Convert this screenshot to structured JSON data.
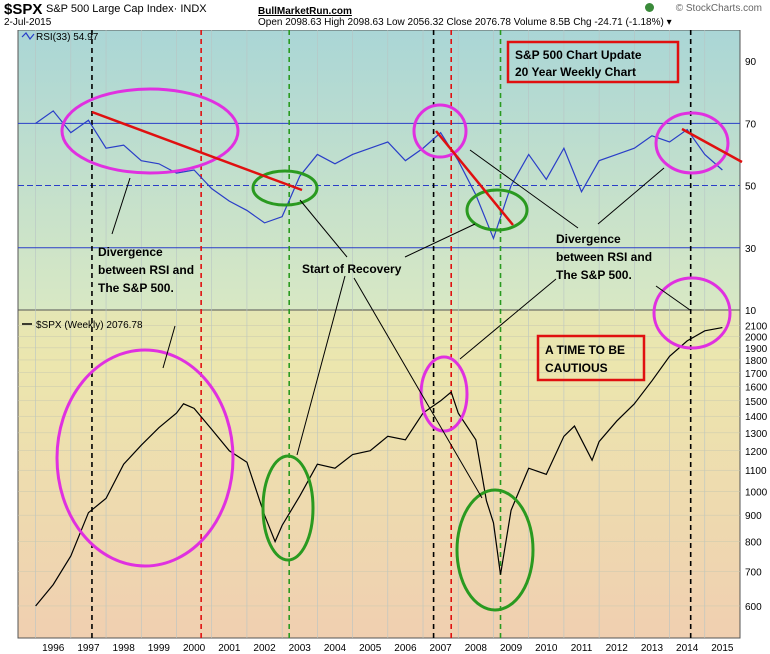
{
  "header": {
    "symbol": "$SPX",
    "description": "S&P 500 Large Cap Index· INDX",
    "date": "2-Jul-2015",
    "site": "BullMarketRun.com",
    "ohlc": "Open 2098.63  High 2098.63  Low 2056.32  Close 2076.78  Volume 8.5B  Chg -24.71 (-1.18%) ▾",
    "credit": "© StockCharts.com"
  },
  "chart_data": [
    {
      "type": "line",
      "panel": "rsi",
      "legend": "RSI(33) 54.97",
      "x_labels": [
        "1996",
        "1997",
        "1998",
        "1999",
        "2000",
        "2001",
        "2002",
        "2003",
        "2004",
        "2005",
        "2006",
        "2007",
        "2008",
        "2009",
        "2010",
        "2011",
        "2012",
        "2013",
        "2014",
        "2015"
      ],
      "x": [
        1996.0,
        1996.5,
        1997.0,
        1997.5,
        1998.0,
        1998.5,
        1999.0,
        1999.5,
        2000.0,
        2000.5,
        2001.0,
        2001.5,
        2002.0,
        2002.5,
        2003.0,
        2003.5,
        2004.0,
        2004.5,
        2005.0,
        2005.5,
        2006.0,
        2006.5,
        2007.0,
        2007.5,
        2008.0,
        2008.5,
        2009.0,
        2009.5,
        2010.0,
        2010.5,
        2011.0,
        2011.5,
        2012.0,
        2012.5,
        2013.0,
        2013.5,
        2014.0,
        2014.5,
        2015.0,
        2015.5
      ],
      "values": [
        70,
        74,
        67,
        71,
        62,
        63,
        58,
        57,
        54,
        55,
        49,
        45,
        42,
        38,
        40,
        53,
        60,
        57,
        60,
        62,
        64,
        58,
        62,
        67,
        58,
        47,
        33,
        50,
        60,
        52,
        62,
        48,
        58,
        60,
        62,
        66,
        64,
        68,
        60,
        55
      ],
      "ylim": [
        10,
        100
      ],
      "ticks": [
        10,
        30,
        50,
        70,
        90
      ],
      "reference_lines": [
        30,
        50,
        70
      ],
      "color": "#2a3ec8"
    },
    {
      "type": "line",
      "panel": "price",
      "legend": "$SPX (Weekly) 2076.78",
      "x_labels": [
        "1996",
        "1997",
        "1998",
        "1999",
        "2000",
        "2001",
        "2002",
        "2003",
        "2004",
        "2005",
        "2006",
        "2007",
        "2008",
        "2009",
        "2010",
        "2011",
        "2012",
        "2013",
        "2014",
        "2015"
      ],
      "x": [
        1996.0,
        1996.5,
        1997.0,
        1997.5,
        1998.0,
        1998.5,
        1999.0,
        1999.5,
        2000.0,
        2000.2,
        2000.5,
        2001.0,
        2001.5,
        2002.0,
        2002.5,
        2002.8,
        2003.0,
        2003.5,
        2004.0,
        2004.5,
        2005.0,
        2005.5,
        2006.0,
        2006.5,
        2007.0,
        2007.5,
        2007.8,
        2008.0,
        2008.5,
        2008.8,
        2009.0,
        2009.2,
        2009.5,
        2010.0,
        2010.5,
        2011.0,
        2011.3,
        2011.8,
        2012.0,
        2012.5,
        2013.0,
        2013.5,
        2014.0,
        2014.5,
        2015.0,
        2015.5
      ],
      "values": [
        600,
        660,
        750,
        910,
        970,
        1130,
        1230,
        1330,
        1420,
        1480,
        1450,
        1320,
        1200,
        1140,
        900,
        800,
        860,
        980,
        1130,
        1110,
        1180,
        1200,
        1280,
        1260,
        1420,
        1500,
        1560,
        1420,
        1260,
        960,
        870,
        690,
        920,
        1110,
        1080,
        1280,
        1340,
        1150,
        1250,
        1370,
        1480,
        1640,
        1830,
        1960,
        2050,
        2080
      ],
      "ylim": [
        520,
        2250
      ],
      "scale": "log",
      "ticks": [
        600,
        700,
        800,
        900,
        1000,
        1100,
        1200,
        1300,
        1400,
        1500,
        1600,
        1700,
        1800,
        1900,
        2000,
        2100
      ],
      "color": "#000000"
    }
  ],
  "annotations": {
    "title_box": [
      "S&P 500 Chart Update",
      "20 Year Weekly Chart"
    ],
    "caution_box": [
      "A TIME TO BE",
      "CAUTIOUS"
    ],
    "divergence_left": [
      "Divergence",
      "between RSI and",
      "The S&P 500."
    ],
    "divergence_right": [
      "Divergence",
      "between RSI and",
      "The S&P 500."
    ],
    "recovery": "Start of Recovery",
    "colors": {
      "magenta": "#e030e0",
      "green": "#2a9a20",
      "red": "#e01010",
      "label_box_border": "#e01010"
    }
  },
  "vertical_markers": {
    "black": [
      1997.6,
      2007.3,
      2014.6
    ],
    "red": [
      2000.7,
      2007.8
    ],
    "green": [
      2003.2,
      2009.2
    ]
  }
}
